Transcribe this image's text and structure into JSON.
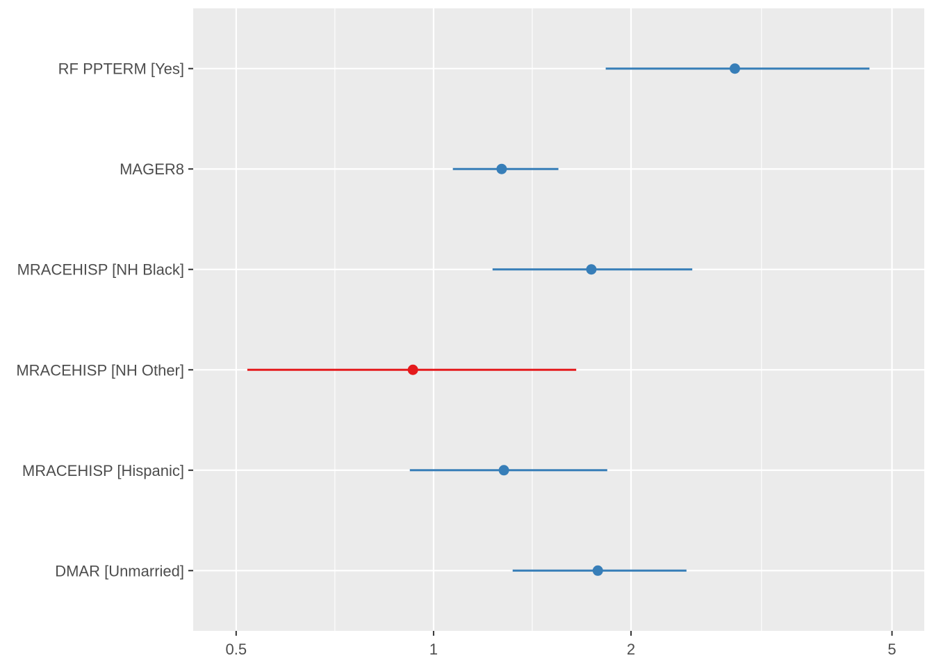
{
  "chart_data": {
    "type": "forest",
    "title": "",
    "xlabel": "",
    "ylabel": "",
    "x_scale": "log10",
    "xlim": [
      0.43,
      5.6
    ],
    "x_ticks": [
      0.5,
      1,
      2,
      5
    ],
    "x_tick_labels": [
      "0.5",
      "1",
      "2",
      "5"
    ],
    "grid": true,
    "rows": [
      {
        "term": "RF PPTERM [Yes]",
        "estimate": 2.88,
        "ci_low": 1.83,
        "ci_high": 4.62,
        "color": "#377EB8"
      },
      {
        "term": "MAGER8",
        "estimate": 1.27,
        "ci_low": 1.07,
        "ci_high": 1.55,
        "color": "#377EB8"
      },
      {
        "term": "MRACEHISP [NH Black]",
        "estimate": 1.74,
        "ci_low": 1.23,
        "ci_high": 2.48,
        "color": "#377EB8"
      },
      {
        "term": "MRACEHISP [NH Other]",
        "estimate": 0.93,
        "ci_low": 0.52,
        "ci_high": 1.65,
        "color": "#E41A1C"
      },
      {
        "term": "MRACEHISP [Hispanic]",
        "estimate": 1.28,
        "ci_low": 0.92,
        "ci_high": 1.84,
        "color": "#377EB8"
      },
      {
        "term": "DMAR [Unmarried]",
        "estimate": 1.78,
        "ci_low": 1.32,
        "ci_high": 2.43,
        "color": "#377EB8"
      }
    ]
  }
}
